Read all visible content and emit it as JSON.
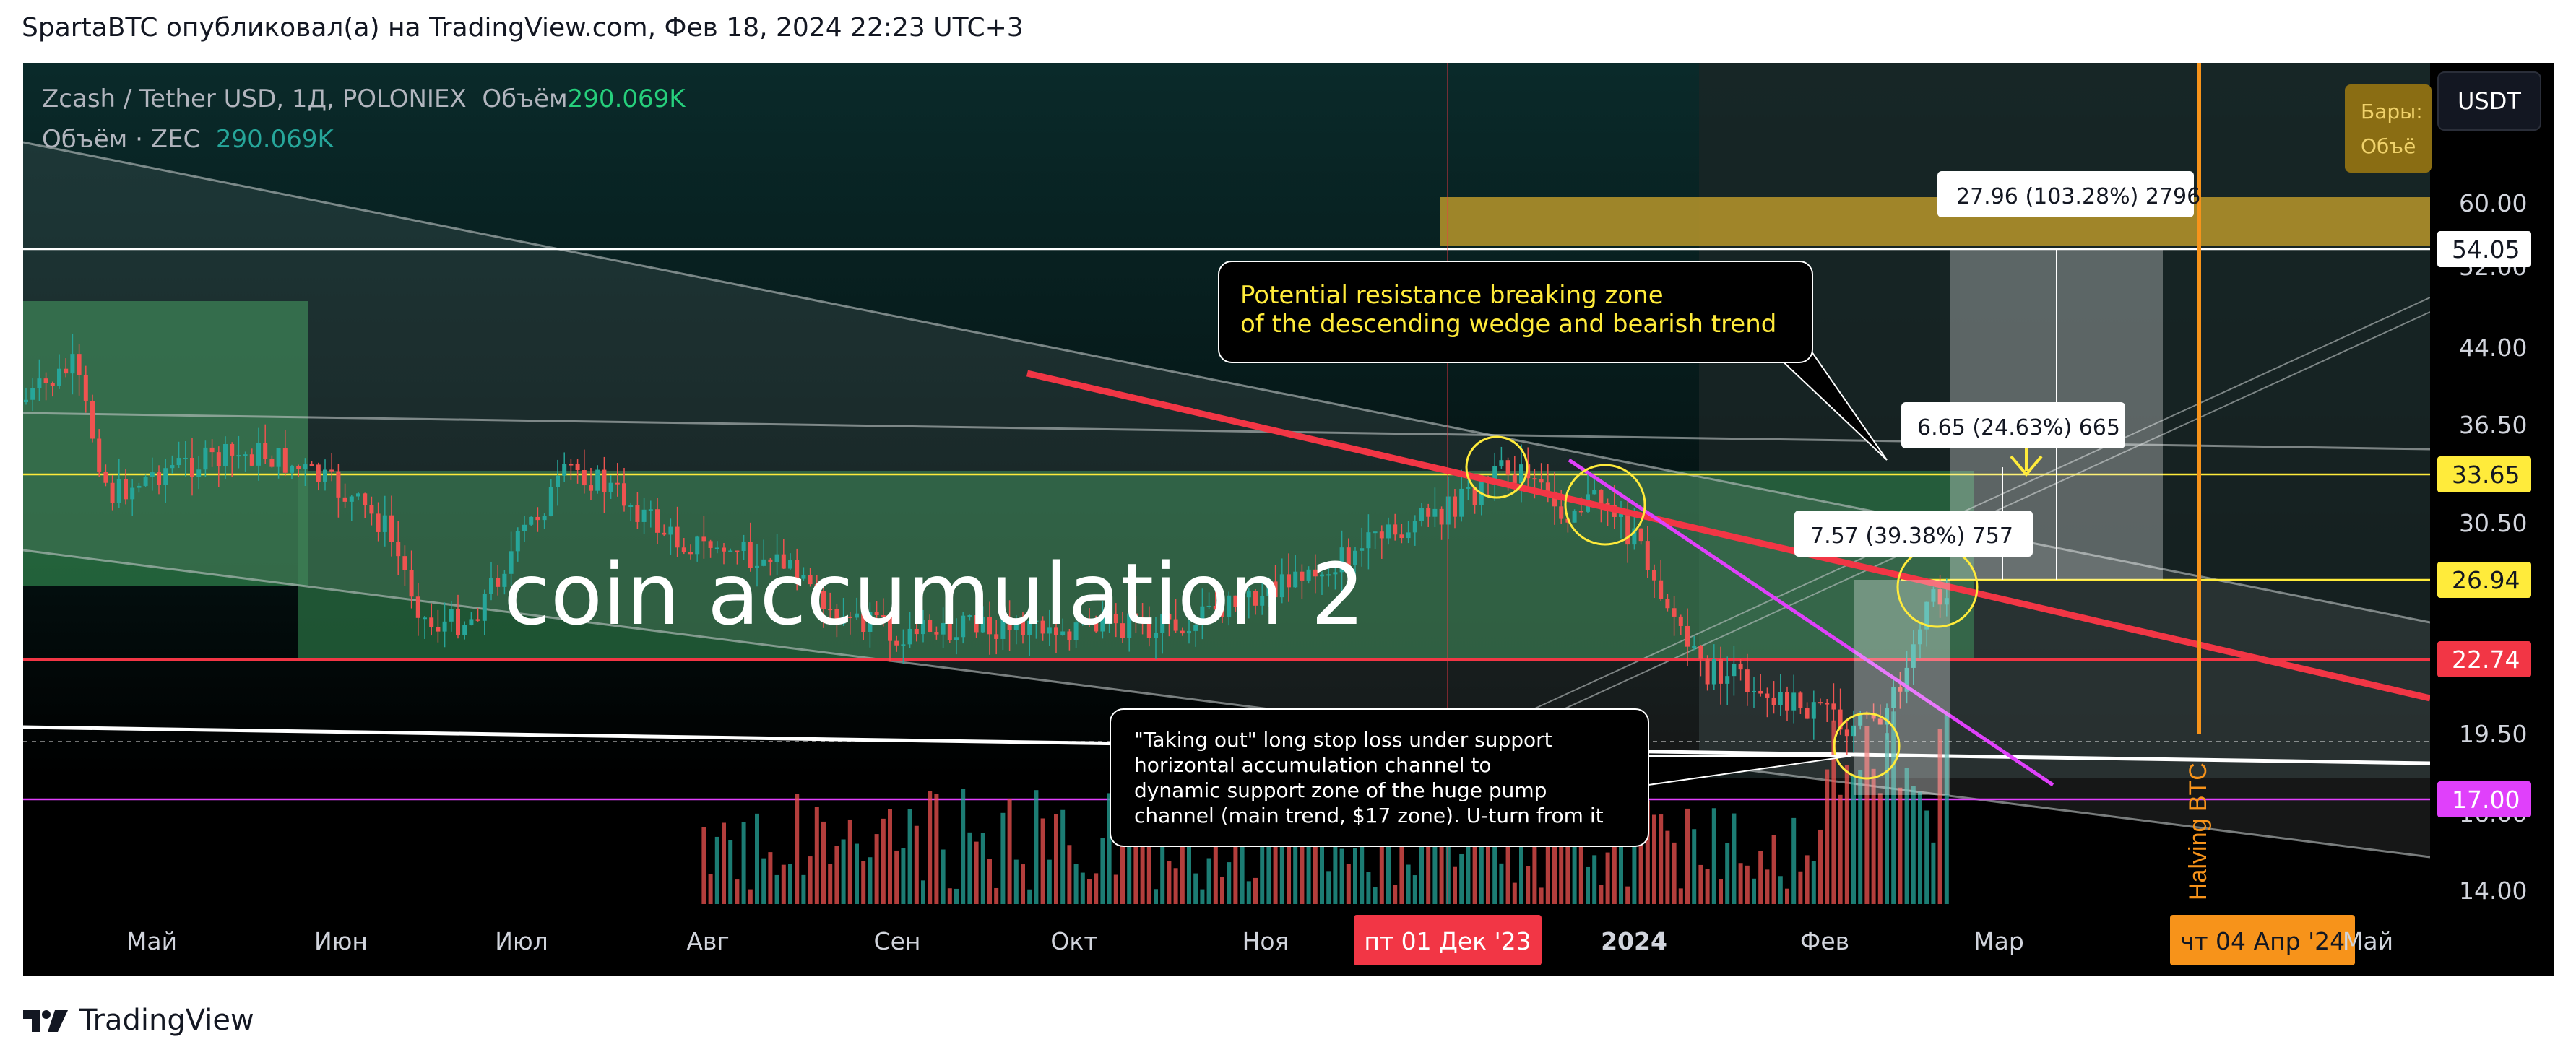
{
  "header": {
    "text": "SpartaBTC опубликовал(а) на TradingView.com, Фев 18, 2024 22:23 UTC+3"
  },
  "legend": {
    "symbol": "Zcash / Tether USD, 1Д, POLONIEX",
    "volume_label": "Объём",
    "volume_value": "290.069K",
    "line2_label": "Объём · ZEC",
    "line2_value": "290.069K"
  },
  "currency_button": "USDT",
  "bars_box": {
    "line1": "Бары:",
    "line2": "Объё"
  },
  "footer": {
    "brand": "TradingView"
  },
  "colors": {
    "background": "#000000",
    "up": "#26a69a",
    "down": "#ef5350",
    "resistance": "#f23645",
    "level_yellow": "#ffeb3b",
    "magenta": "#e040fb",
    "halving": "#f7931a"
  },
  "chart_data": {
    "type": "candlestick",
    "x_ticks": [
      "Май",
      "Июн",
      "Июл",
      "Авг",
      "Сен",
      "Окт",
      "Ноя",
      "пт 01 Дек '23",
      "2024",
      "Фев",
      "Мар",
      "чт 04 Апр '24",
      "Май"
    ],
    "y_ticks": [
      "60.00",
      "52.00",
      "44.00",
      "36.50",
      "30.50",
      "19.50",
      "16.00",
      "14.00"
    ],
    "price_badges": [
      {
        "label": "54.05",
        "value": 54.05,
        "style": "white"
      },
      {
        "label": "33.65",
        "value": 33.65,
        "style": "yellow"
      },
      {
        "label": "26.94",
        "value": 26.94,
        "style": "yellow"
      },
      {
        "label": "22.74",
        "value": 22.74,
        "style": "red"
      },
      {
        "label": "17.00",
        "value": 17.0,
        "style": "magenta"
      }
    ],
    "annotations": {
      "big_label": "coin accumulation 2",
      "resistance_note_1": "Potential resistance breaking zone",
      "resistance_note_2": "of the descending wedge and bearish trend",
      "support_note_1": "\"Taking out\" long stop loss under support",
      "support_note_2": "horizontal accumulation channel to",
      "support_note_3": "dynamic support zone of the huge pump",
      "support_note_4": "channel (main trend, $17 zone). U-turn from it",
      "target_1": {
        "value": "27.96",
        "pct": "(103.28%)",
        "ticks": "2796"
      },
      "target_2": {
        "value": "6.65",
        "pct": "(24.63%)",
        "ticks": "665"
      },
      "target_3": {
        "value": "7.57",
        "pct": "(39.38%)",
        "ticks": "757"
      },
      "halving": "Halving BTC"
    },
    "levels": [
      54.05,
      33.65,
      26.94,
      22.74,
      17.0
    ],
    "grid": true
  }
}
